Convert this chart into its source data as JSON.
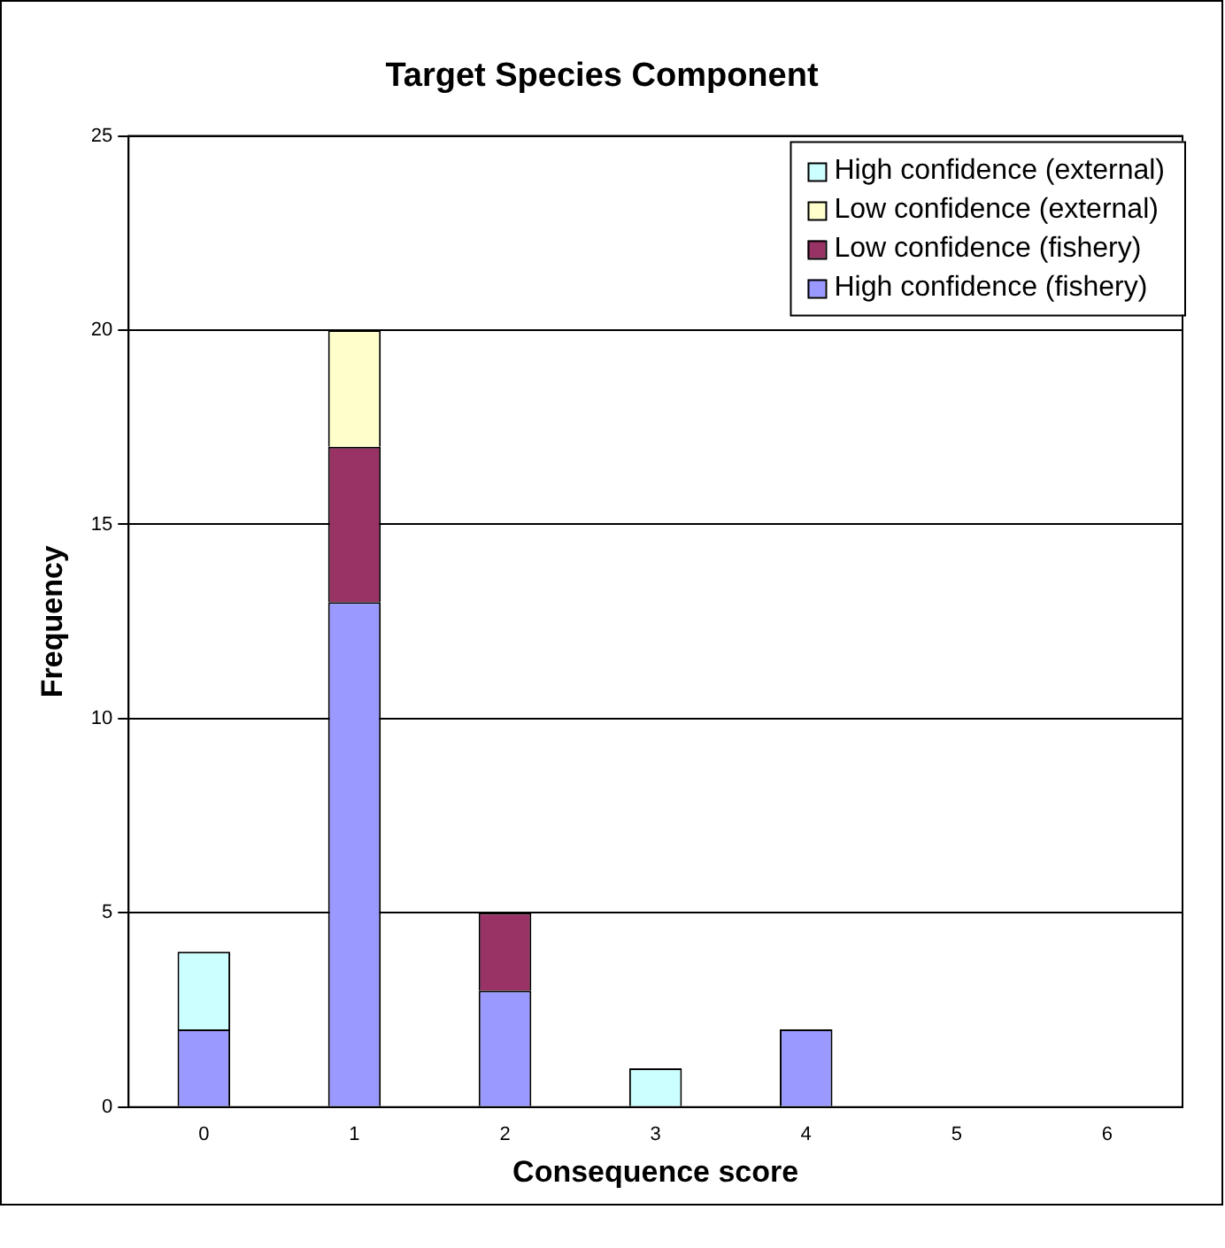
{
  "chart_data": {
    "type": "bar",
    "title": "Target Species Component",
    "xlabel": "Consequence score",
    "ylabel": "Frequency",
    "categories": [
      "0",
      "1",
      "2",
      "3",
      "4",
      "5",
      "6"
    ],
    "stacked": true,
    "series": [
      {
        "name": "High confidence (fishery)",
        "color": "#9999ff",
        "values": [
          2,
          13,
          3,
          0,
          2,
          0,
          0
        ]
      },
      {
        "name": "Low confidence (fishery)",
        "color": "#993366",
        "values": [
          0,
          4,
          2,
          0,
          0,
          0,
          0
        ]
      },
      {
        "name": "Low confidence (external)",
        "color": "#ffffcc",
        "values": [
          0,
          3,
          0,
          0,
          0,
          0,
          0
        ]
      },
      {
        "name": "High confidence (external)",
        "color": "#ccffff",
        "values": [
          2,
          0,
          0,
          1,
          0,
          0,
          0
        ]
      }
    ],
    "ylim": [
      0,
      25
    ],
    "yticks": [
      0,
      5,
      10,
      15,
      20,
      25
    ],
    "grid": "y",
    "legend": "top right"
  }
}
